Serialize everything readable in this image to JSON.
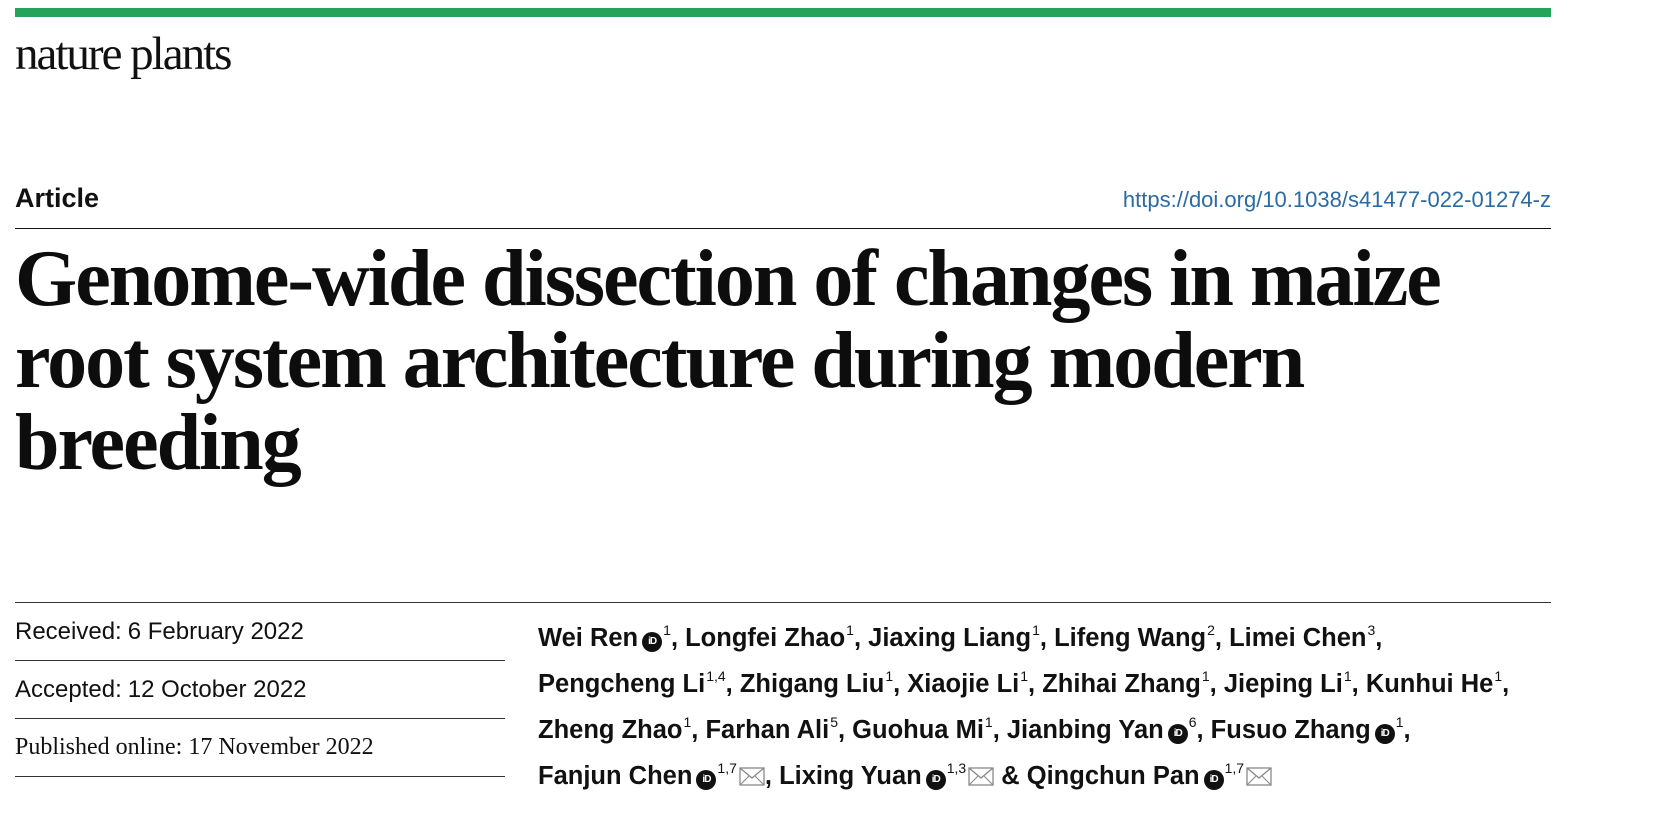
{
  "journal": {
    "name": "nature plants",
    "accent_color": "#25a35a"
  },
  "article": {
    "type": "Article",
    "doi": "https://doi.org/10.1038/s41477-022-01274-z",
    "title_lines": [
      "Genome-wide dissection of changes in maize",
      "root system architecture during modern",
      "breeding"
    ]
  },
  "dates": [
    {
      "label": "Received:",
      "value": "6 February 2022"
    },
    {
      "label": "Accepted:",
      "value": "12 October 2022"
    },
    {
      "label": "Published online:",
      "value": "17 November 2022"
    }
  ],
  "orcid_icon_text": "iD",
  "authors": [
    {
      "name": "Wei Ren",
      "orcid": true,
      "aff": "1",
      "sep": ", ",
      "mail": false
    },
    {
      "name": "Longfei Zhao",
      "orcid": false,
      "aff": "1",
      "sep": ", ",
      "mail": false
    },
    {
      "name": "Jiaxing Liang",
      "orcid": false,
      "aff": "1",
      "sep": ", ",
      "mail": false
    },
    {
      "name": "Lifeng Wang",
      "orcid": false,
      "aff": "2",
      "sep": ", ",
      "mail": false
    },
    {
      "name": "Limei Chen",
      "orcid": false,
      "aff": "3",
      "sep": ", ",
      "mail": false
    },
    {
      "name": "Pengcheng Li",
      "orcid": false,
      "aff": "1,4",
      "sep": ", ",
      "mail": false
    },
    {
      "name": "Zhigang Liu",
      "orcid": false,
      "aff": "1",
      "sep": ", ",
      "mail": false
    },
    {
      "name": "Xiaojie Li",
      "orcid": false,
      "aff": "1",
      "sep": ", ",
      "mail": false
    },
    {
      "name": "Zhihai Zhang",
      "orcid": false,
      "aff": "1",
      "sep": ", ",
      "mail": false
    },
    {
      "name": "Jieping Li",
      "orcid": false,
      "aff": "1",
      "sep": ", ",
      "mail": false
    },
    {
      "name": "Kunhui He",
      "orcid": false,
      "aff": "1",
      "sep": ", ",
      "mail": false
    },
    {
      "name": "Zheng Zhao",
      "orcid": false,
      "aff": "1",
      "sep": ", ",
      "mail": false
    },
    {
      "name": "Farhan Ali",
      "orcid": false,
      "aff": "5",
      "sep": ", ",
      "mail": false
    },
    {
      "name": "Guohua Mi",
      "orcid": false,
      "aff": "1",
      "sep": ", ",
      "mail": false
    },
    {
      "name": "Jianbing Yan",
      "orcid": true,
      "aff": "6",
      "sep": ", ",
      "mail": false
    },
    {
      "name": "Fusuo Zhang",
      "orcid": true,
      "aff": "1",
      "sep": ", ",
      "mail": false
    },
    {
      "name": "Fanjun Chen",
      "orcid": true,
      "aff": "1,7",
      "sep": ", ",
      "mail": true
    },
    {
      "name": "Lixing Yuan",
      "orcid": true,
      "aff": "1,3",
      "sep": " & ",
      "mail": true
    },
    {
      "name": "Qingchun Pan",
      "orcid": true,
      "aff": "1,7",
      "sep": "",
      "mail": true
    }
  ],
  "icons": {
    "orcid": "orcid-icon",
    "mail": "mail-icon"
  }
}
